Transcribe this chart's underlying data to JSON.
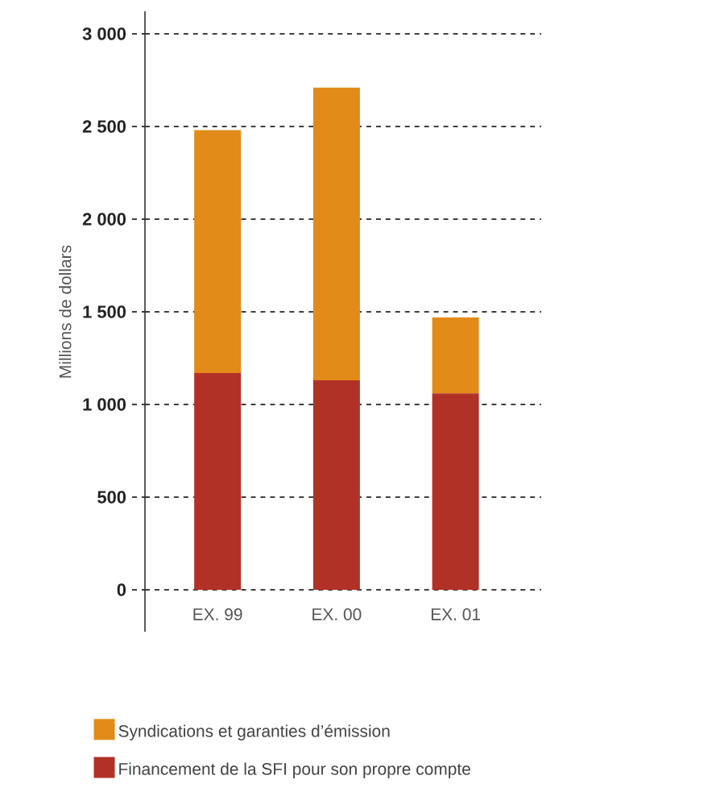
{
  "chart_data": {
    "type": "bar",
    "stacked": true,
    "categories": [
      "EX. 99",
      "EX. 00",
      "EX. 01"
    ],
    "series": [
      {
        "name": "Financement de la SFI pour son propre compte",
        "color": "#b23127",
        "values": [
          1170,
          1130,
          1060
        ]
      },
      {
        "name": "Syndications et garanties d’émission",
        "color": "#e28b19",
        "values": [
          1310,
          1580,
          410
        ]
      }
    ],
    "ylabel": "Millions de dollars",
    "ylim": [
      0,
      3000
    ],
    "yticks": [
      0,
      500,
      {
        "value": 1000,
        "label": "1 000"
      },
      {
        "value": 1500,
        "label": "1 500"
      },
      {
        "value": 2000,
        "label": "2 000"
      },
      {
        "value": 2500,
        "label": "2 500"
      },
      {
        "value": 3000,
        "label": "3 000"
      }
    ],
    "grid": "y",
    "legend": "bottom"
  }
}
